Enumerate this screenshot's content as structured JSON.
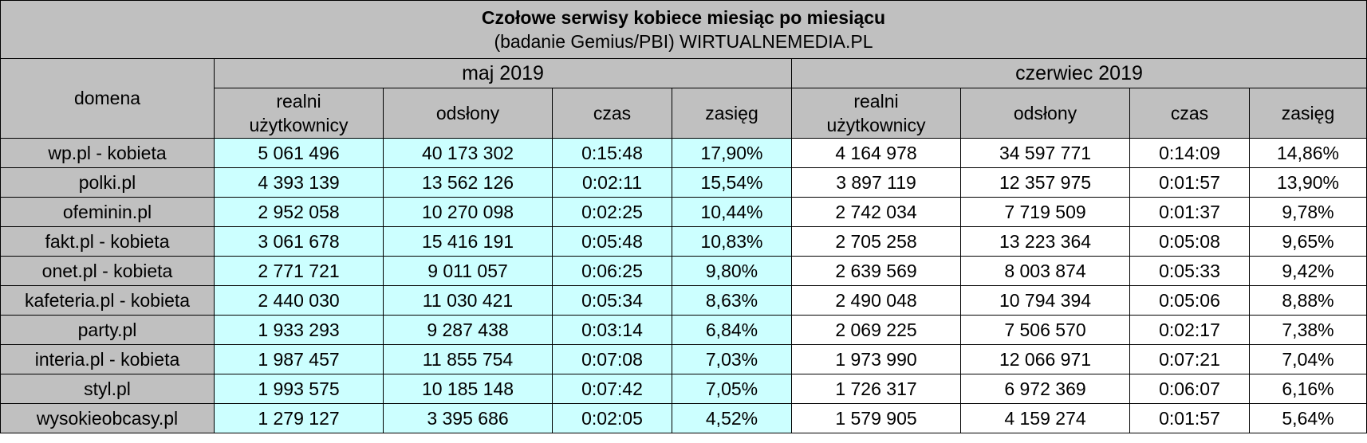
{
  "chart_data": {
    "type": "table",
    "title": "Czołowe serwisy kobiece miesiąc po miesiącu",
    "subtitle": "(badanie Gemius/PBI) WIRTUALNEMEDIA.PL",
    "row_header": "domena",
    "periods": [
      "maj 2019",
      "czerwiec 2019"
    ],
    "columns": [
      "realni użytkownicy",
      "odsłony",
      "czas",
      "zasięg"
    ],
    "rows": [
      {
        "domain": "wp.pl - kobieta",
        "may": [
          "5 061 496",
          "40 173 302",
          "0:15:48",
          "17,90%"
        ],
        "june": [
          "4 164 978",
          "34 597 771",
          "0:14:09",
          "14,86%"
        ]
      },
      {
        "domain": "polki.pl",
        "may": [
          "4 393 139",
          "13 562 126",
          "0:02:11",
          "15,54%"
        ],
        "june": [
          "3 897 119",
          "12 357 975",
          "0:01:57",
          "13,90%"
        ]
      },
      {
        "domain": "ofeminin.pl",
        "may": [
          "2 952 058",
          "10 270 098",
          "0:02:25",
          "10,44%"
        ],
        "june": [
          "2 742 034",
          "7 719 509",
          "0:01:37",
          "9,78%"
        ]
      },
      {
        "domain": "fakt.pl - kobieta",
        "may": [
          "3 061 678",
          "15 416 191",
          "0:05:48",
          "10,83%"
        ],
        "june": [
          "2 705 258",
          "13 223 364",
          "0:05:08",
          "9,65%"
        ]
      },
      {
        "domain": "onet.pl - kobieta",
        "may": [
          "2 771 721",
          "9 011 057",
          "0:06:25",
          "9,80%"
        ],
        "june": [
          "2 639 569",
          "8 003 874",
          "0:05:33",
          "9,42%"
        ]
      },
      {
        "domain": "kafeteria.pl - kobieta",
        "may": [
          "2 440 030",
          "11 030 421",
          "0:05:34",
          "8,63%"
        ],
        "june": [
          "2 490 048",
          "10 794 394",
          "0:05:06",
          "8,88%"
        ]
      },
      {
        "domain": "party.pl",
        "may": [
          "1 933 293",
          "9 287 438",
          "0:03:14",
          "6,84%"
        ],
        "june": [
          "2 069 225",
          "7 506 570",
          "0:02:17",
          "7,38%"
        ]
      },
      {
        "domain": "interia.pl - kobieta",
        "may": [
          "1 987 457",
          "11 855 754",
          "0:07:08",
          "7,03%"
        ],
        "june": [
          "1 973 990",
          "12 066 971",
          "0:07:21",
          "7,04%"
        ]
      },
      {
        "domain": "styl.pl",
        "may": [
          "1 993 575",
          "10 185 148",
          "0:07:42",
          "7,05%"
        ],
        "june": [
          "1 726 317",
          "6 972 369",
          "0:06:07",
          "6,16%"
        ]
      },
      {
        "domain": "wysokieobcasy.pl",
        "may": [
          "1 279 127",
          "3 395 686",
          "0:02:05",
          "4,52%"
        ],
        "june": [
          "1 579 905",
          "4 159 274",
          "0:01:57",
          "5,64%"
        ]
      }
    ]
  },
  "colors": {
    "header_bg": "#c0c0c0",
    "may_data_bg": "#ccffff",
    "june_data_bg": "#ffffff",
    "border": "#000000"
  }
}
